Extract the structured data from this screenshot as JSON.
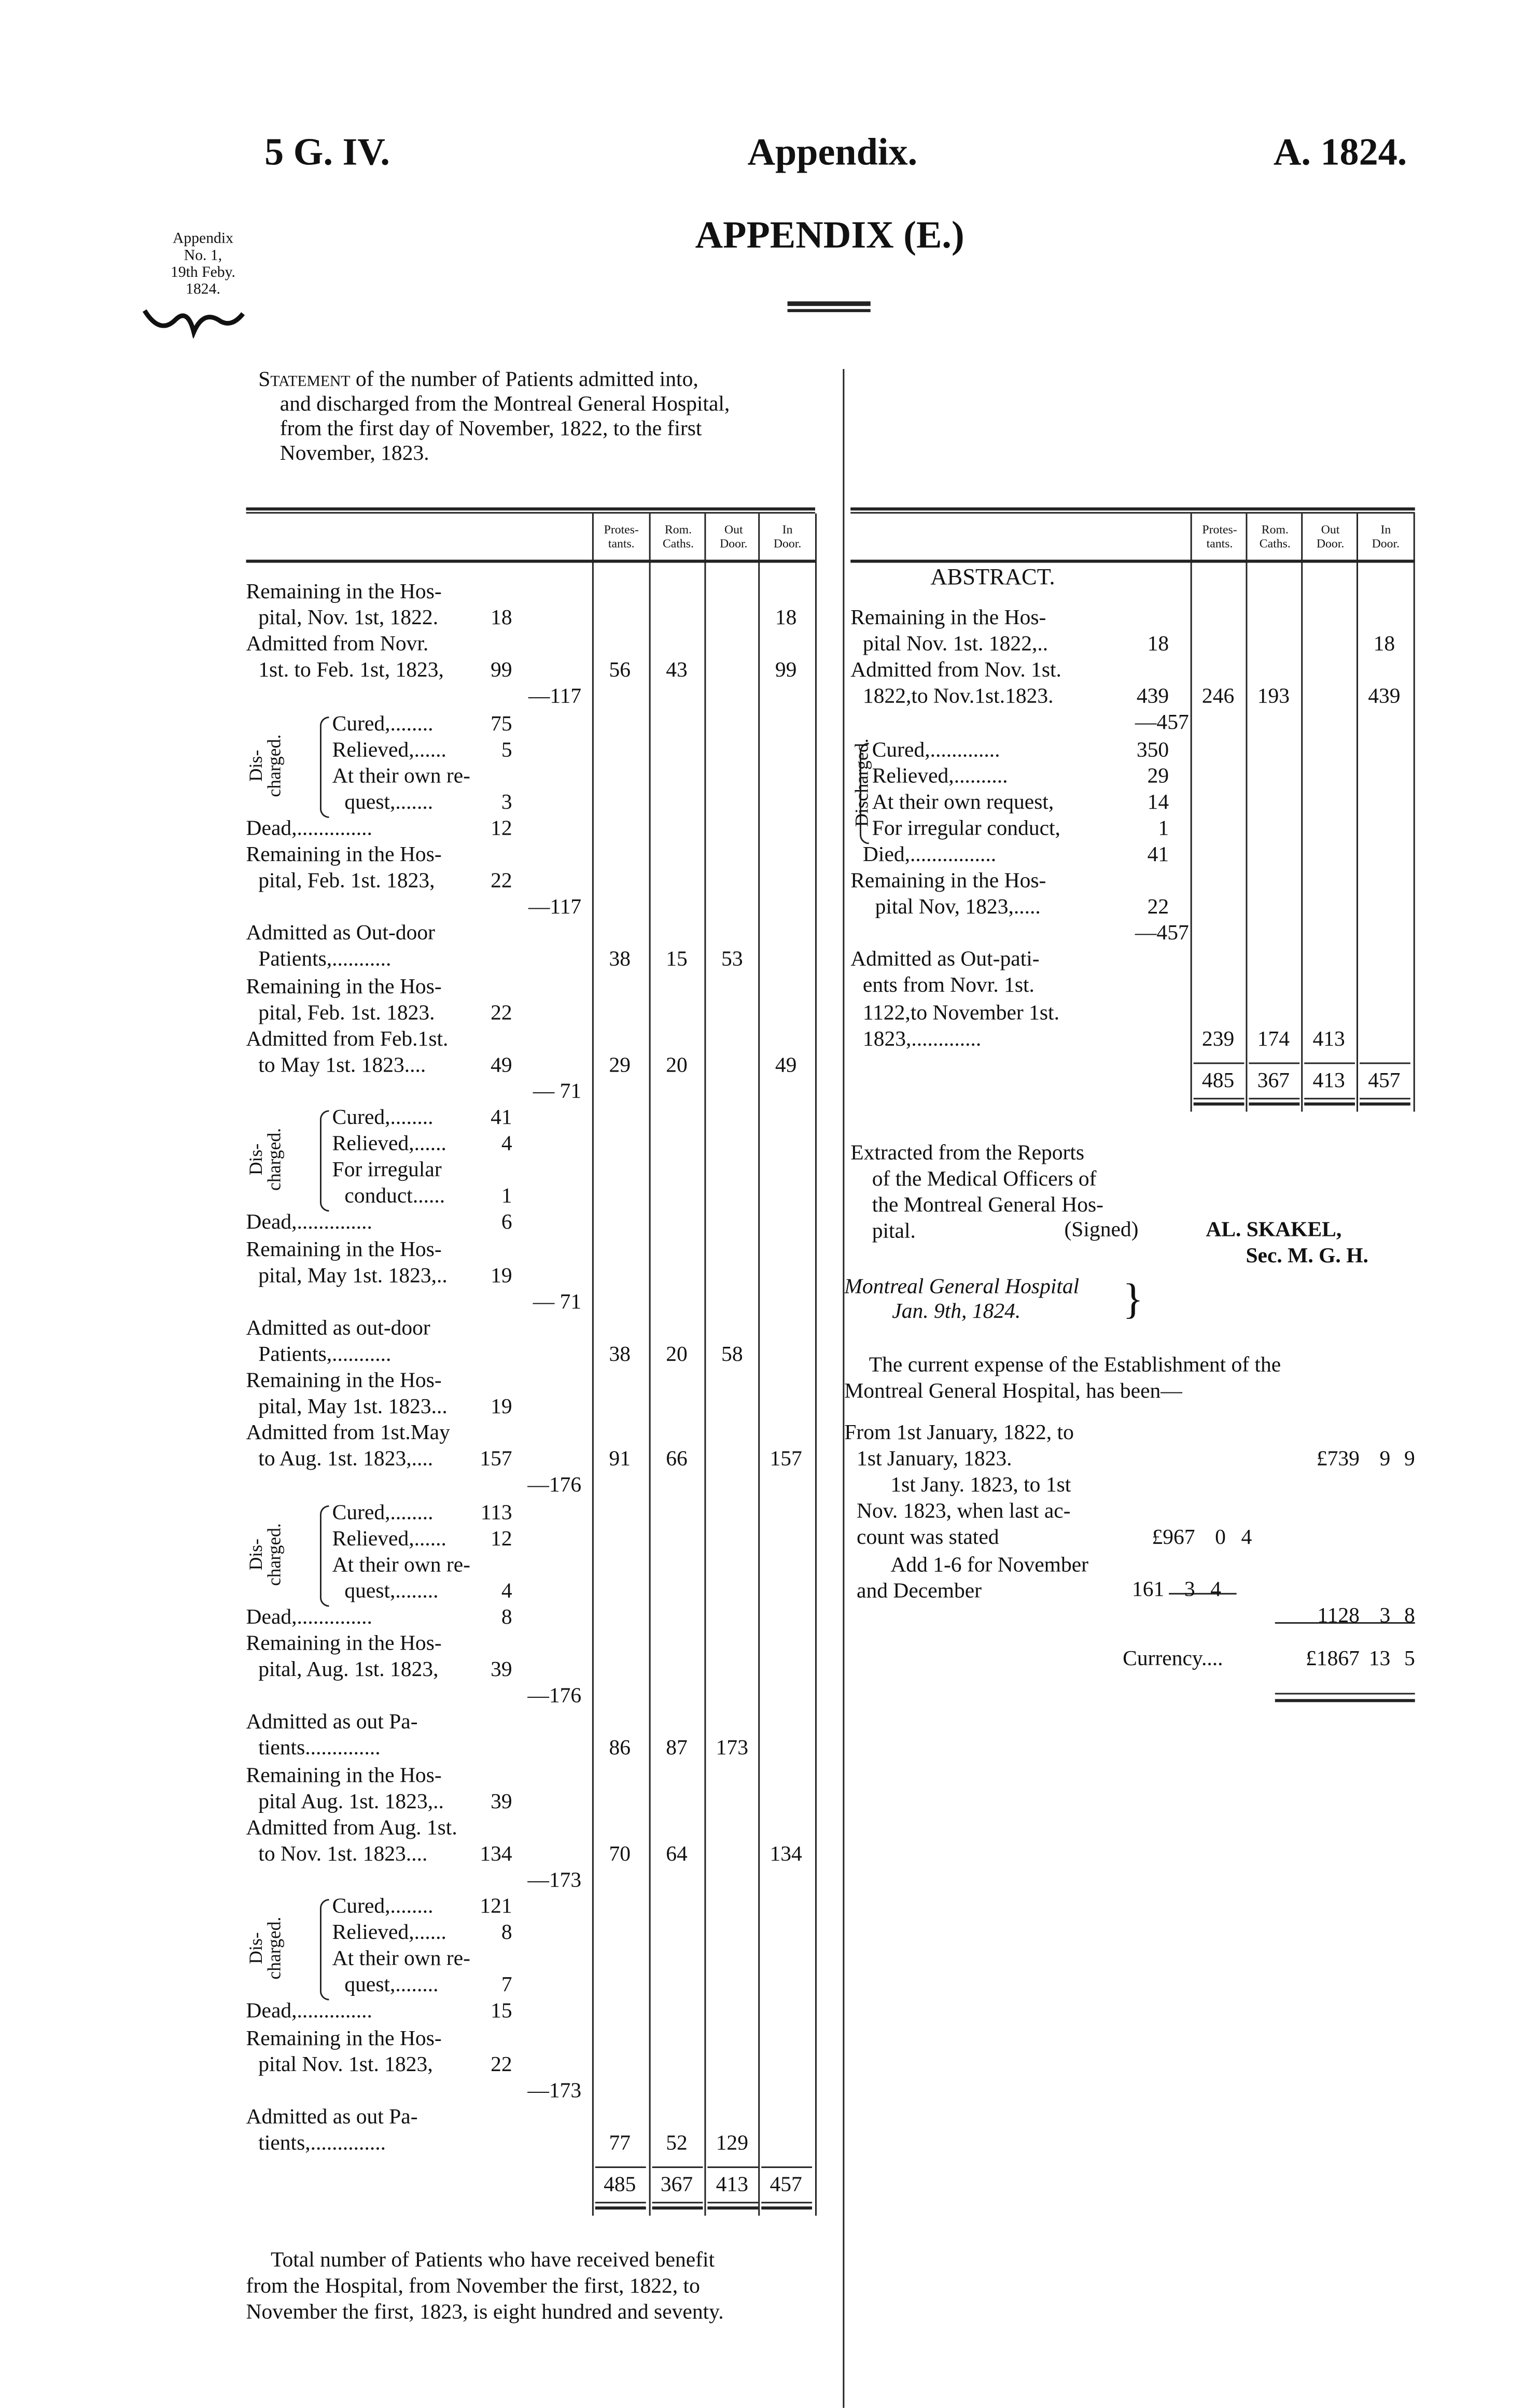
{
  "header": {
    "left": "5 G. IV.",
    "center": "Appendix.",
    "right": "A. 1824.",
    "title": "APPENDIX (E.)"
  },
  "margin_note": {
    "lines": [
      "Appendix",
      "No. 1,",
      "19th Feby.",
      "1824."
    ]
  },
  "statement": {
    "lead": "Statement",
    "lines": [
      " of the number of Patients admitted into,",
      "and discharged from the Montreal General Hospital,",
      "from the first day of November, 1822, to the first",
      "November, 1823."
    ]
  },
  "columns": [
    [
      "Protes-",
      "tants."
    ],
    [
      "Rom.",
      "Caths."
    ],
    [
      "Out",
      "Door."
    ],
    [
      "In",
      "Door."
    ]
  ],
  "discharged_label": "Dis-\ncharged.",
  "left": {
    "rows": [
      {
        "t": "Remaining in the Hos-"
      },
      {
        "t": "pital, Nov. 1st, 1822.",
        "in": 1,
        "v": "18",
        "c": [
          "",
          "",
          "",
          "18"
        ]
      },
      {
        "t": "Admitted from Novr."
      },
      {
        "t": "1st. to Feb. 1st, 1823,",
        "in": 1,
        "v": "99",
        "c": [
          "56",
          "43",
          "",
          "99"
        ]
      },
      {
        "s": "—117"
      },
      {
        "t": "Cured,........",
        "d": 1,
        "v": "75"
      },
      {
        "t": "Relieved,......",
        "d": 1,
        "v": "5"
      },
      {
        "t": "At their own re-",
        "d": 1
      },
      {
        "t": "quest,.......",
        "d": 1,
        "in": 1,
        "v": "3"
      },
      {
        "t": "Dead,..............",
        "v": "12"
      },
      {
        "t": "Remaining in the Hos-"
      },
      {
        "t": "pital, Feb. 1st. 1823,",
        "in": 1,
        "v": "22"
      },
      {
        "s": "—117"
      },
      {
        "t": "Admitted as Out-door"
      },
      {
        "t": "Patients,...........",
        "in": 1,
        "c": [
          "38",
          "15",
          "53",
          ""
        ]
      },
      {
        "t": "Remaining in the Hos-"
      },
      {
        "t": "pital, Feb. 1st. 1823.",
        "in": 1,
        "v": "22"
      },
      {
        "t": "Admitted from Feb.1st."
      },
      {
        "t": "to May 1st. 1823....",
        "in": 1,
        "v": "49",
        "c": [
          "29",
          "20",
          "",
          "49"
        ]
      },
      {
        "s": "— 71"
      },
      {
        "t": "Cured,........",
        "d": 1,
        "v": "41"
      },
      {
        "t": "Relieved,......",
        "d": 1,
        "v": "4"
      },
      {
        "t": "For irregular",
        "d": 1
      },
      {
        "t": "conduct......",
        "d": 1,
        "in": 1,
        "v": "1"
      },
      {
        "t": "Dead,..............",
        "v": "6"
      },
      {
        "t": "Remaining in the Hos-"
      },
      {
        "t": "pital, May 1st. 1823,..",
        "in": 1,
        "v": "19"
      },
      {
        "s": "— 71"
      },
      {
        "t": "Admitted as out-door"
      },
      {
        "t": "Patients,...........",
        "in": 1,
        "c": [
          "38",
          "20",
          "58",
          ""
        ]
      },
      {
        "t": "Remaining in the Hos-"
      },
      {
        "t": "pital, May 1st. 1823...",
        "in": 1,
        "v": "19"
      },
      {
        "t": "Admitted from 1st.May"
      },
      {
        "t": "to Aug. 1st. 1823,....",
        "in": 1,
        "v": "157",
        "c": [
          "91",
          "66",
          "",
          "157"
        ]
      },
      {
        "s": "—176"
      },
      {
        "t": "Cured,........",
        "d": 1,
        "v": "113"
      },
      {
        "t": "Relieved,......",
        "d": 1,
        "v": "12"
      },
      {
        "t": "At their own re-",
        "d": 1
      },
      {
        "t": "quest,........",
        "d": 1,
        "in": 1,
        "v": "4"
      },
      {
        "t": "Dead,..............",
        "v": "8"
      },
      {
        "t": "Remaining in the Hos-"
      },
      {
        "t": "pital, Aug. 1st. 1823,",
        "in": 1,
        "v": "39"
      },
      {
        "s": "—176"
      },
      {
        "t": "Admitted as out Pa-"
      },
      {
        "t": "tients..............",
        "in": 1,
        "c": [
          "86",
          "87",
          "173",
          ""
        ]
      },
      {
        "t": "Remaining in the Hos-"
      },
      {
        "t": "pital Aug. 1st. 1823,..",
        "in": 1,
        "v": "39"
      },
      {
        "t": "Admitted from Aug. 1st."
      },
      {
        "t": "to Nov. 1st. 1823....",
        "in": 1,
        "v": "134",
        "c": [
          "70",
          "64",
          "",
          "134"
        ]
      },
      {
        "s": "—173"
      },
      {
        "t": "Cured,........",
        "d": 1,
        "v": "121"
      },
      {
        "t": "Relieved,......",
        "d": 1,
        "v": "8"
      },
      {
        "t": "At their own re-",
        "d": 1
      },
      {
        "t": "quest,........",
        "d": 1,
        "in": 1,
        "v": "7"
      },
      {
        "t": "Dead,..............",
        "v": "15"
      },
      {
        "t": "Remaining in the Hos-"
      },
      {
        "t": "pital Nov. 1st. 1823,",
        "in": 1,
        "v": "22"
      },
      {
        "s": "—173"
      },
      {
        "t": "Admitted as out Pa-"
      },
      {
        "t": "tients,..............",
        "in": 1,
        "c": [
          "77",
          "52",
          "129",
          ""
        ]
      }
    ],
    "totals": [
      "485",
      "367",
      "413",
      "457"
    ]
  },
  "abstract": {
    "title": "ABSTRACT.",
    "rows": [
      {
        "t": "Remaining in the Hos-"
      },
      {
        "t": "pital Nov. 1st. 1822,..",
        "in": 1,
        "v": "18",
        "c": [
          "",
          "",
          "",
          "18"
        ]
      },
      {
        "t": "Admitted from Nov. 1st."
      },
      {
        "t": "1822,to Nov.1st.1823.",
        "in": 1,
        "v": "439",
        "c": [
          "246",
          "193",
          "",
          "439"
        ]
      },
      {
        "s": "—457"
      },
      {
        "t": "Cured,.............",
        "d": 1,
        "v": "350"
      },
      {
        "t": "Relieved,..........",
        "d": 1,
        "v": "29"
      },
      {
        "t": "At their own request,",
        "d": 1,
        "v": "14"
      },
      {
        "t": "For irregular conduct,",
        "d": 1,
        "v": "1"
      },
      {
        "t": "Died,................",
        "in": 1,
        "v": "41"
      },
      {
        "t": "Remaining in the Hos-"
      },
      {
        "t": "pital Nov, 1823,.....",
        "in": 2,
        "v": "22"
      },
      {
        "s": "—457"
      },
      {
        "t": "Admitted as Out-pati-"
      },
      {
        "t": "ents from Novr. 1st.",
        "in": 1
      },
      {
        "t": "1122,to November 1st.",
        "in": 1
      },
      {
        "t": "1823,.............",
        "in": 1,
        "c": [
          "239",
          "174",
          "413",
          ""
        ]
      }
    ],
    "discharged_label": "Discharged.",
    "totals": [
      "485",
      "367",
      "413",
      "457"
    ]
  },
  "extract": {
    "lines": [
      "Extracted from the Reports",
      "of the Medical Officers of",
      "the Montreal General Hos-",
      "pital."
    ],
    "signed": "(Signed)",
    "signatory": "AL. SKAKEL,",
    "signatory_title": "Sec. M. G. H.",
    "place": "Montreal General Hospital",
    "date": "Jan. 9th, 1824."
  },
  "expense": {
    "intro": [
      "The current expense of the Establishment of the",
      "Montreal General Hospital, has been—"
    ],
    "item1_lines": [
      "From 1st January, 1822, to",
      "1st January, 1823."
    ],
    "item1_amount": [
      "£739",
      "9",
      "9"
    ],
    "item2_lines": [
      "1st Jany. 1823, to 1st",
      "Nov. 1823, when last ac-",
      "count was stated"
    ],
    "item2_amount": [
      "£967",
      "0",
      "4"
    ],
    "item3_lines": [
      "Add 1-6 for November",
      "and December"
    ],
    "item3_amount": [
      "161",
      "3",
      "4"
    ],
    "subtotal": [
      "1128",
      "3",
      "8"
    ],
    "total_label": "Currency....",
    "total": [
      "£1867",
      "13",
      "5"
    ]
  },
  "footer": {
    "lines": [
      "Total number of Patients who have received benefit",
      "from the Hospital, from November the first, 1822, to",
      "November the first, 1823, is eight hundred and seventy."
    ]
  }
}
